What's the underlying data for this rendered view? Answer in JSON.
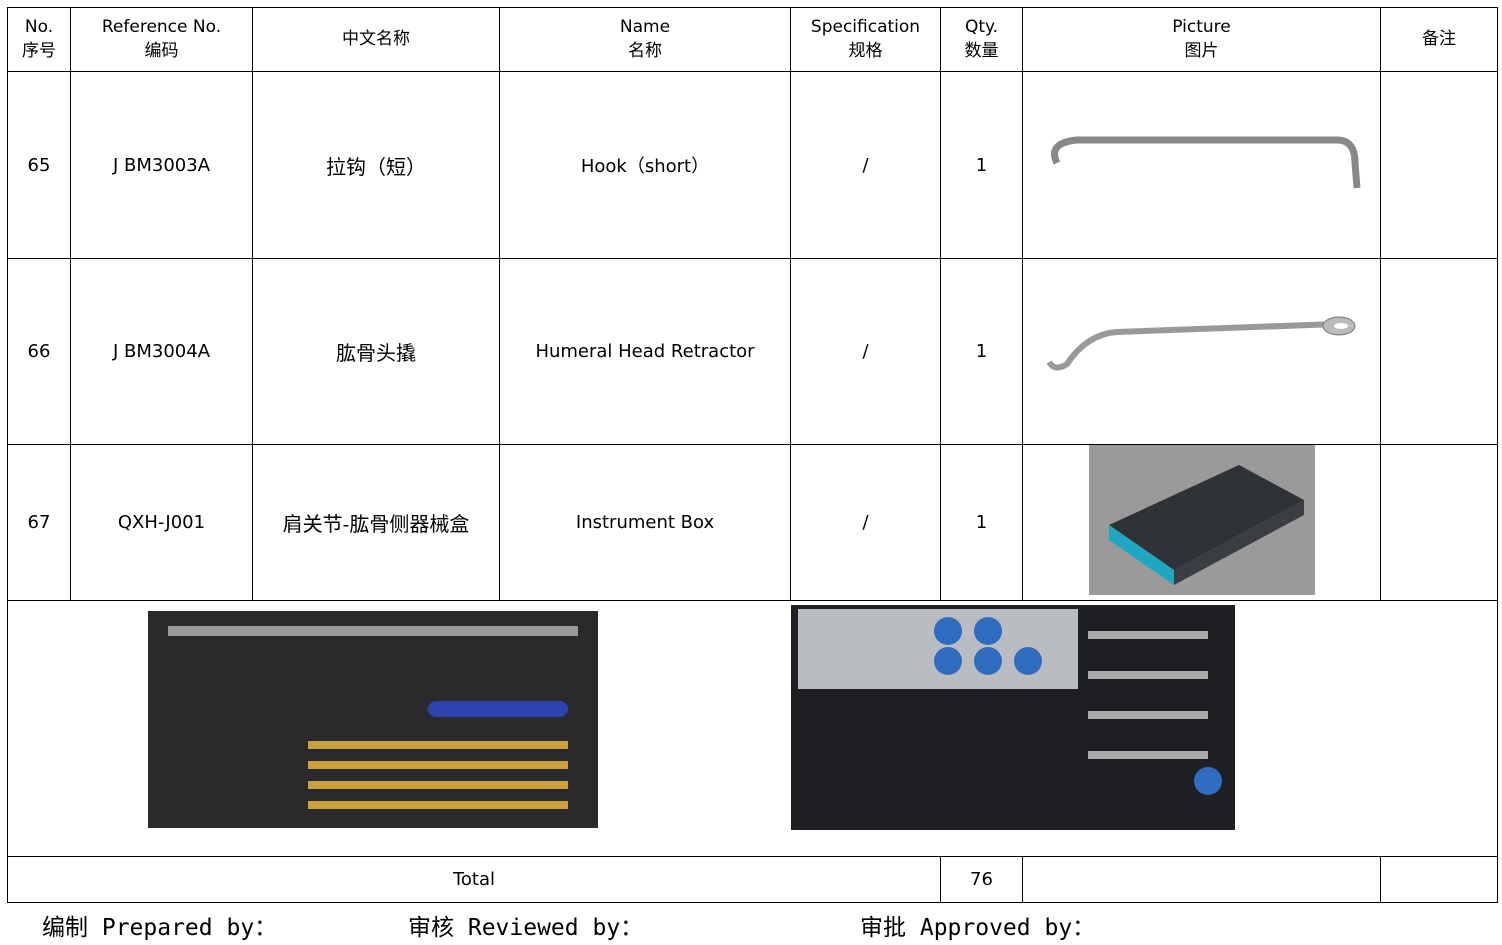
{
  "table": {
    "header": [
      [
        "No.",
        "序号"
      ],
      [
        "Reference No.",
        "编码"
      ],
      [
        "中文名称"
      ],
      [
        "Name",
        "名称"
      ],
      [
        "Specification",
        "规格"
      ],
      [
        "Qty.",
        "数量"
      ],
      [
        "Picture",
        "图片"
      ],
      [
        "备注"
      ]
    ],
    "rows": [
      [
        "65",
        "J BM3003A",
        "拉钩（短）",
        "Hook（short）",
        "/",
        "1"
      ],
      [
        "66",
        "J BM3004A",
        "肱骨头撬",
        "Humeral Head Retractor",
        "/",
        "1"
      ],
      [
        "67",
        "QXH-J001",
        "肩关节-肱骨侧器械盒",
        "Instrument Box",
        "/",
        "1"
      ]
    ],
    "total": {
      "label": "Total",
      "value": "76"
    }
  },
  "footer": [
    "编制 Prepared by：",
    "审核 Reviewed by：",
    "审批 Approved by："
  ]
}
